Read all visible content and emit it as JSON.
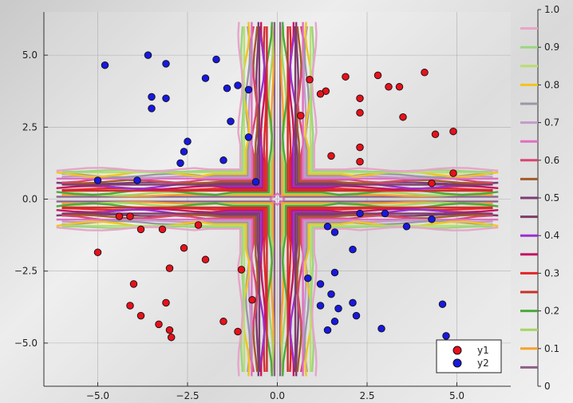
{
  "chart_data": {
    "type": "scatter",
    "xlim": [
      -6.5,
      6.5
    ],
    "ylim": [
      -6.5,
      6.5
    ],
    "x_ticks": [
      -5,
      -2.5,
      0,
      2.5,
      5
    ],
    "x_tick_labels": [
      "−5.0",
      "−2.5",
      "0.0",
      "2.5",
      "5.0"
    ],
    "y_ticks": [
      -5,
      -2.5,
      0,
      2.5,
      5
    ],
    "y_tick_labels": [
      "−5.0",
      "−2.5",
      "0.0",
      "2.5",
      "5.0"
    ],
    "grid": true,
    "legend_position": "bottom-right",
    "series": [
      {
        "name": "y1",
        "color": "#e8111b",
        "points": [
          [
            4.1,
            4.4
          ],
          [
            2.8,
            4.3
          ],
          [
            1.9,
            4.25
          ],
          [
            0.9,
            4.15
          ],
          [
            3.1,
            3.9
          ],
          [
            3.4,
            3.9
          ],
          [
            1.35,
            3.75
          ],
          [
            1.2,
            3.65
          ],
          [
            2.3,
            3.5
          ],
          [
            2.3,
            3.0
          ],
          [
            0.65,
            2.9
          ],
          [
            3.5,
            2.85
          ],
          [
            4.9,
            2.35
          ],
          [
            4.4,
            2.25
          ],
          [
            2.3,
            1.8
          ],
          [
            1.5,
            1.5
          ],
          [
            2.3,
            1.3
          ],
          [
            4.9,
            0.9
          ],
          [
            4.3,
            0.55
          ],
          [
            -4.4,
            -0.6
          ],
          [
            -4.1,
            -0.6
          ],
          [
            -3.8,
            -1.05
          ],
          [
            -3.2,
            -1.05
          ],
          [
            -2.2,
            -0.9
          ],
          [
            -5.0,
            -1.85
          ],
          [
            -2.6,
            -1.7
          ],
          [
            -2.0,
            -2.1
          ],
          [
            -3.0,
            -2.4
          ],
          [
            -1.0,
            -2.45
          ],
          [
            -4.0,
            -2.95
          ],
          [
            -0.7,
            -3.5
          ],
          [
            -3.1,
            -3.6
          ],
          [
            -4.1,
            -3.7
          ],
          [
            -3.8,
            -4.05
          ],
          [
            -3.3,
            -4.35
          ],
          [
            -1.5,
            -4.25
          ],
          [
            -3.0,
            -4.55
          ],
          [
            -1.1,
            -4.6
          ],
          [
            -2.95,
            -4.8
          ]
        ]
      },
      {
        "name": "y2",
        "color": "#1818e0",
        "points": [
          [
            -4.8,
            4.65
          ],
          [
            -3.6,
            5.0
          ],
          [
            -3.1,
            4.7
          ],
          [
            -1.7,
            4.85
          ],
          [
            -2.0,
            4.2
          ],
          [
            -1.1,
            3.95
          ],
          [
            -1.4,
            3.85
          ],
          [
            -0.8,
            3.8
          ],
          [
            -3.5,
            3.55
          ],
          [
            -3.1,
            3.5
          ],
          [
            -3.5,
            3.15
          ],
          [
            -1.3,
            2.7
          ],
          [
            -0.8,
            2.15
          ],
          [
            -2.5,
            2.0
          ],
          [
            -2.6,
            1.65
          ],
          [
            -1.5,
            1.35
          ],
          [
            -2.7,
            1.25
          ],
          [
            -0.6,
            0.6
          ],
          [
            -5.0,
            0.65
          ],
          [
            -3.9,
            0.65
          ],
          [
            2.3,
            -0.5
          ],
          [
            4.3,
            -0.7
          ],
          [
            3.0,
            -0.5
          ],
          [
            1.4,
            -0.95
          ],
          [
            1.6,
            -1.15
          ],
          [
            3.6,
            -0.95
          ],
          [
            2.1,
            -1.75
          ],
          [
            0.85,
            -2.75
          ],
          [
            1.6,
            -2.55
          ],
          [
            1.2,
            -2.95
          ],
          [
            1.5,
            -3.3
          ],
          [
            1.2,
            -3.7
          ],
          [
            2.1,
            -3.6
          ],
          [
            1.7,
            -3.8
          ],
          [
            4.6,
            -3.65
          ],
          [
            2.2,
            -4.05
          ],
          [
            1.6,
            -4.25
          ],
          [
            1.4,
            -4.55
          ],
          [
            2.9,
            -4.5
          ],
          [
            4.7,
            -4.75
          ]
        ]
      }
    ],
    "colorbar": {
      "tick_labels": [
        "0",
        "0.1",
        "0.2",
        "0.3",
        "0.4",
        "0.5",
        "0.6",
        "0.7",
        "0.8",
        "0.9",
        "1.0"
      ],
      "levels": [
        0.05,
        0.1,
        0.15,
        0.2,
        0.25,
        0.3,
        0.35,
        0.4,
        0.45,
        0.5,
        0.55,
        0.6,
        0.65,
        0.7,
        0.75,
        0.8,
        0.85,
        0.9,
        0.95
      ],
      "level_colors": [
        "#8b6088",
        "#f7a22a",
        "#a6d464",
        "#4ca93b",
        "#c8302f",
        "#e42526",
        "#c31465",
        "#9b2fd2",
        "#7c3c6a",
        "#7e3a74",
        "#a25a2a",
        "#d8466f",
        "#e06fc0",
        "#c39bc9",
        "#9c96a8",
        "#f2c41c",
        "#b8df6f",
        "#9bd683",
        "#e8a4c8"
      ]
    }
  }
}
